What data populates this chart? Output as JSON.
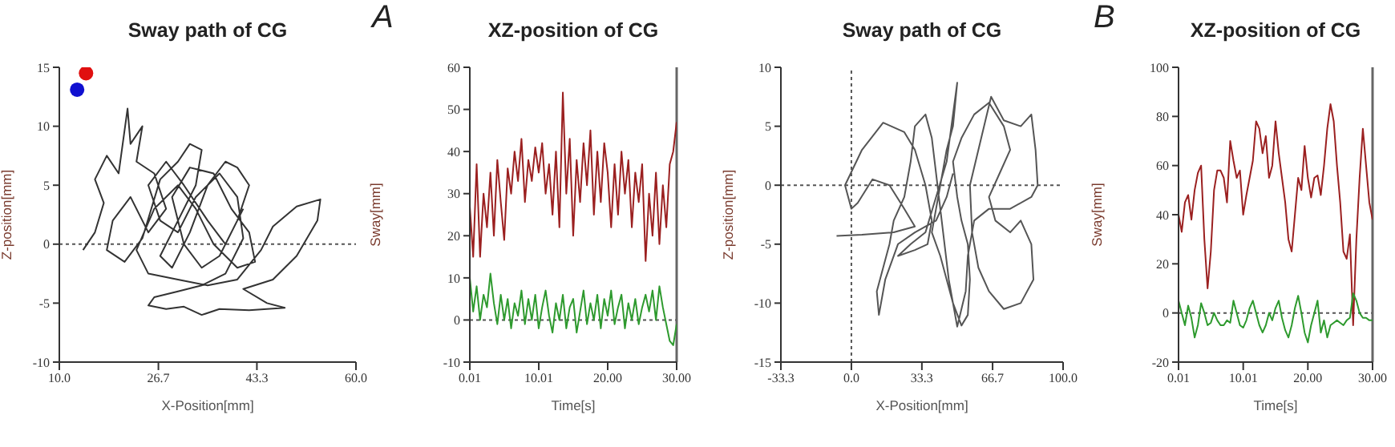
{
  "chart_data": [
    {
      "type": "line",
      "title": "Sway path of CG",
      "xlabel": "X-Position[mm]",
      "ylabel": "Z-position[mm]",
      "xlim": [
        10,
        60
      ],
      "xticks": [
        {
          "value": 10,
          "label": "10.0"
        },
        26.7,
        43.3,
        {
          "value": 60,
          "label": "60.0"
        }
      ],
      "ylim": [
        -10,
        15
      ],
      "yticks": [
        -10,
        -5,
        0,
        5,
        10,
        15
      ],
      "line_style": "solid",
      "ref_lines": [
        {
          "axis": "y",
          "value": 0,
          "line_style": "dotted",
          "color": "#555555"
        }
      ],
      "series": [
        {
          "color": "#333333",
          "x": [
            14,
            16,
            17.5,
            16,
            18,
            20,
            21.5,
            22,
            24,
            23,
            26,
            28,
            25,
            22,
            19,
            18,
            21,
            24,
            27,
            30,
            32,
            34,
            33,
            30,
            27,
            29,
            32,
            35,
            38,
            40,
            42,
            40,
            37,
            34,
            31,
            29,
            32,
            36,
            39,
            42,
            43,
            40,
            36,
            33,
            30,
            26,
            23,
            25,
            30,
            35,
            40,
            44,
            46,
            50,
            54,
            53.5,
            50,
            46,
            41,
            45,
            48,
            42,
            37,
            34,
            31,
            28,
            25,
            26,
            30,
            34,
            38,
            41,
            40,
            37,
            33,
            30,
            27,
            25,
            28,
            31,
            35,
            38,
            41
          ],
          "values": [
            -0.5,
            1,
            3.5,
            5.5,
            7.5,
            6,
            11.5,
            8.5,
            10,
            7,
            6,
            3,
            1,
            4,
            2,
            -0.5,
            -1.5,
            0.5,
            5.5,
            7,
            8.5,
            8,
            5,
            2,
            -1,
            -2,
            1,
            5,
            7,
            6.5,
            5,
            2,
            -1,
            -2,
            0,
            4,
            6.5,
            6,
            3,
            1,
            -1.5,
            -2,
            0,
            3,
            5,
            3,
            -0.5,
            -2.5,
            -3,
            -3.5,
            -3,
            -0.5,
            1.5,
            3.2,
            3.8,
            2,
            -1,
            -3,
            -3.8,
            -5,
            -5.4,
            -5.6,
            -5.5,
            -6,
            -5.3,
            -5.5,
            -5.2,
            -4.5,
            -4,
            -3.5,
            -2.5,
            0.5,
            4,
            6,
            4,
            1,
            2,
            5,
            7,
            5,
            2,
            0,
            3
          ]
        },
        {
          "type": "scatter",
          "marker": "circle",
          "color": "#e01010",
          "x": [
            14.5
          ],
          "values": [
            14.5
          ]
        },
        {
          "type": "scatter",
          "marker": "circle",
          "color": "#1010d0",
          "x": [
            13
          ],
          "values": [
            13.1
          ]
        }
      ],
      "marker": "none"
    },
    {
      "type": "line",
      "title": "XZ-position of CG",
      "xlabel": "Time[s]",
      "ylabel": "Sway[mm]",
      "annotations": [
        "A"
      ],
      "xlim": [
        0.01,
        30
      ],
      "xticks": [
        0.01,
        10.01,
        {
          "value": 20,
          "label": "20.00"
        },
        {
          "value": 30,
          "label": "30.00"
        }
      ],
      "ylim": [
        -10,
        60
      ],
      "yticks": [
        -10,
        0,
        10,
        20,
        30,
        40,
        50,
        60
      ],
      "line_style": "solid",
      "marker": "none",
      "ref_lines": [
        {
          "axis": "y",
          "value": 0,
          "line_style": "dotted",
          "color": "#555555"
        },
        {
          "axis": "x",
          "value": 30,
          "line_style": "solid",
          "color": "#666666"
        }
      ],
      "x": [
        0.01,
        0.5,
        1,
        1.5,
        2,
        2.5,
        3,
        3.5,
        4,
        4.5,
        5,
        5.5,
        6,
        6.5,
        7,
        7.5,
        8,
        8.5,
        9,
        9.5,
        10,
        10.5,
        11,
        11.5,
        12,
        12.5,
        13,
        13.5,
        14,
        14.5,
        15,
        15.5,
        16,
        16.5,
        17,
        17.5,
        18,
        18.5,
        19,
        19.5,
        20,
        20.5,
        21,
        21.5,
        22,
        22.5,
        23,
        23.5,
        24,
        24.5,
        25,
        25.5,
        26,
        26.5,
        27,
        27.5,
        28,
        28.5,
        29,
        29.5,
        30
      ],
      "series": [
        {
          "color": "#9b2020",
          "values": [
            27,
            15,
            37,
            15,
            30,
            22,
            35,
            20,
            38,
            28,
            19,
            36,
            30,
            40,
            33,
            43,
            28,
            38,
            33,
            41,
            35,
            42,
            30,
            37,
            25,
            40,
            22,
            54,
            30,
            43,
            20,
            38,
            28,
            42,
            32,
            45,
            25,
            40,
            28,
            42,
            35,
            22,
            37,
            25,
            40,
            30,
            38,
            22,
            35,
            28,
            37,
            14,
            30,
            20,
            35,
            18,
            32,
            22,
            37,
            40,
            47
          ]
        },
        {
          "color": "#2e9a2e",
          "values": [
            10,
            2,
            8,
            0,
            6,
            3,
            11,
            4,
            -1,
            6,
            0,
            5,
            -2,
            4,
            1,
            7,
            -1,
            5,
            0,
            6,
            -2,
            3,
            7,
            1,
            -3,
            4,
            0,
            6,
            -2,
            3,
            5,
            -3,
            2,
            7,
            -1,
            4,
            0,
            6,
            -2,
            5,
            1,
            7,
            -1,
            3,
            6,
            -2,
            4,
            0,
            5,
            -1,
            3,
            6,
            2,
            7,
            0,
            8,
            3,
            -1,
            -5,
            -6,
            -1
          ]
        }
      ]
    },
    {
      "type": "line",
      "title": "Sway path of CG",
      "xlabel": "X-Position[mm]",
      "ylabel": "Z-position[mm]",
      "xlim": [
        -33.3,
        100
      ],
      "xticks": [
        -33.3,
        {
          "value": 0,
          "label": "0.0"
        },
        33.3,
        66.7,
        {
          "value": 100,
          "label": "100.0"
        }
      ],
      "ylim": [
        -15,
        10
      ],
      "yticks": [
        -15,
        -10,
        -5,
        0,
        5,
        10
      ],
      "line_style": "solid",
      "marker": "none",
      "ref_lines": [
        {
          "axis": "y",
          "value": 0,
          "line_style": "dotted",
          "color": "#555555"
        },
        {
          "axis": "x",
          "value": 0,
          "line_style": "dotted",
          "color": "#555555"
        }
      ],
      "series": [
        {
          "color": "#555555",
          "x": [
            -7,
            5,
            20,
            30,
            25,
            18,
            10,
            3,
            0,
            -3,
            5,
            15,
            25,
            30,
            35,
            38,
            36,
            30,
            22,
            28,
            35,
            40,
            45,
            50,
            48,
            45,
            42,
            40,
            38,
            42,
            45,
            48,
            52,
            55,
            56,
            55,
            52,
            50,
            48,
            52,
            58,
            65,
            72,
            75,
            70,
            65,
            68,
            75,
            80,
            85,
            86,
            80,
            72,
            65,
            60,
            57,
            56,
            60,
            66,
            72,
            80,
            85,
            87,
            88,
            85,
            75,
            65,
            58,
            55,
            54,
            50,
            46,
            44,
            42,
            40,
            38,
            35,
            30,
            28,
            25,
            20,
            18,
            15,
            12,
            13,
            16,
            22,
            30,
            40,
            45,
            48
          ],
          "values": [
            -4.3,
            -4.2,
            -4,
            -3.5,
            -2,
            0,
            0.5,
            -1.5,
            -2,
            0,
            3,
            5.3,
            4.5,
            3,
            0,
            -3,
            -5,
            -5.5,
            -6,
            -5,
            -4,
            -1,
            2,
            8.7,
            5,
            3,
            0,
            -2,
            -4,
            -6,
            -8,
            -10,
            -11.9,
            -11,
            -8,
            -5,
            -3,
            -1,
            2,
            4,
            6,
            7,
            5,
            3,
            1,
            -1,
            -3,
            -4,
            -3,
            -5,
            -8,
            -10,
            -10.5,
            -9,
            -7,
            -4,
            0,
            3,
            7.5,
            5.5,
            5,
            6,
            3,
            0,
            -1,
            -2,
            -2,
            -3,
            -6,
            -9,
            -12,
            -8,
            -5,
            -2,
            1,
            4,
            6,
            5,
            2,
            -1,
            -3,
            -5,
            -7,
            -9,
            -11,
            -8,
            -5,
            -4,
            -3,
            -1,
            1
          ]
        }
      ]
    },
    {
      "type": "line",
      "title": "XZ-position of CG",
      "xlabel": "Time[s]",
      "ylabel": "Sway[mm]",
      "annotations": [
        "B"
      ],
      "xlim": [
        0.01,
        30
      ],
      "xticks": [
        0.01,
        10.01,
        {
          "value": 20,
          "label": "20.00"
        },
        {
          "value": 30,
          "label": "30.00"
        }
      ],
      "ylim": [
        -20,
        100
      ],
      "yticks": [
        -20,
        0,
        20,
        40,
        60,
        80,
        100
      ],
      "line_style": "solid",
      "marker": "none",
      "ref_lines": [
        {
          "axis": "y",
          "value": 0,
          "line_style": "dotted",
          "color": "#555555"
        },
        {
          "axis": "x",
          "value": 30,
          "line_style": "solid",
          "color": "#666666"
        }
      ],
      "x": [
        0.01,
        0.5,
        1,
        1.5,
        2,
        2.5,
        3,
        3.5,
        4,
        4.5,
        5,
        5.5,
        6,
        6.5,
        7,
        7.5,
        8,
        8.5,
        9,
        9.5,
        10,
        10.5,
        11,
        11.5,
        12,
        12.5,
        13,
        13.5,
        14,
        14.5,
        15,
        15.5,
        16,
        16.5,
        17,
        17.5,
        18,
        18.5,
        19,
        19.5,
        20,
        20.5,
        21,
        21.5,
        22,
        22.5,
        23,
        23.5,
        24,
        24.5,
        25,
        25.5,
        26,
        26.5,
        27,
        27.5,
        28,
        28.5,
        29,
        29.5,
        30
      ],
      "series": [
        {
          "color": "#9b2020",
          "values": [
            40,
            33,
            45,
            48,
            38,
            50,
            57,
            60,
            30,
            10,
            25,
            50,
            58,
            58,
            55,
            45,
            70,
            62,
            55,
            58,
            40,
            48,
            55,
            62,
            78,
            75,
            65,
            72,
            55,
            60,
            78,
            65,
            55,
            45,
            30,
            25,
            40,
            55,
            50,
            68,
            55,
            47,
            55,
            56,
            48,
            60,
            75,
            85,
            78,
            60,
            45,
            25,
            22,
            32,
            -5,
            30,
            55,
            75,
            60,
            45,
            38
          ]
        },
        {
          "color": "#2e9a2e",
          "values": [
            5,
            0,
            -5,
            3,
            -2,
            -10,
            -5,
            4,
            0,
            -5,
            -4,
            0,
            -3,
            -5,
            -5,
            -3,
            -4,
            5,
            0,
            -5,
            -6,
            -3,
            2,
            5,
            0,
            -5,
            -8,
            -5,
            0,
            -3,
            2,
            5,
            -2,
            -7,
            -10,
            -5,
            2,
            7,
            0,
            -8,
            -12,
            -5,
            0,
            5,
            -8,
            -3,
            -10,
            -5,
            -4,
            -3,
            -4,
            -5,
            -3,
            -2,
            8,
            5,
            0,
            -2,
            -2,
            -3,
            -3
          ]
        }
      ]
    }
  ]
}
